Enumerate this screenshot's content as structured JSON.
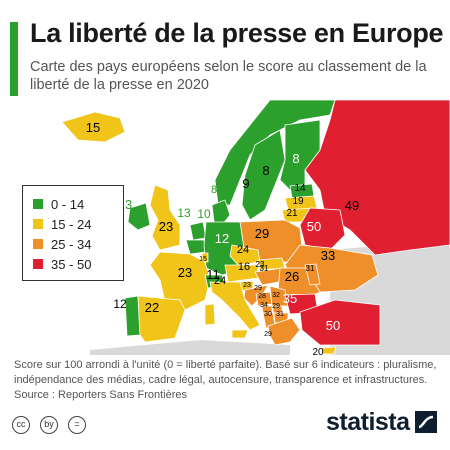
{
  "title": "La liberté de la presse en Europe",
  "subtitle": "Carte des pays européens selon le score au classement de la liberté de la presse en 2020",
  "legend": [
    {
      "label": "0 - 14",
      "color": "#2ca02c"
    },
    {
      "label": "15 - 24",
      "color": "#f0c419"
    },
    {
      "label": "25 - 34",
      "color": "#ee8f2a"
    },
    {
      "label": "35 - 50",
      "color": "#e02030"
    }
  ],
  "regions": {
    "islande": {
      "score": "15",
      "category": 1
    },
    "irlande": {
      "score": "13",
      "category": 0
    },
    "royaume_uni": {
      "score": "23",
      "category": 1
    },
    "norvege": {
      "score": "8",
      "category": 0
    },
    "suede": {
      "score": "9",
      "category": 0
    },
    "finlande": {
      "score": "8",
      "category": 0
    },
    "danemark": {
      "score": "8",
      "category": 0
    },
    "pays_bas": {
      "score": "13",
      "category": 0
    },
    "belgique": {
      "score": "10",
      "category": 0
    },
    "luxembourg": {
      "score": "15",
      "category": 1
    },
    "allemagne": {
      "score": "12",
      "category": 0
    },
    "france": {
      "score": "23",
      "category": 1
    },
    "suisse": {
      "score": "11",
      "category": 0
    },
    "portugal": {
      "score": "12",
      "category": 0
    },
    "espagne": {
      "score": "22",
      "category": 1
    },
    "italie": {
      "score": "24",
      "category": 1
    },
    "autriche": {
      "score": "16",
      "category": 1
    },
    "tchequie": {
      "score": "24",
      "category": 1
    },
    "pologne": {
      "score": "29",
      "category": 2
    },
    "estonie": {
      "score": "14",
      "category": 0
    },
    "lettonie": {
      "score": "19",
      "category": 1
    },
    "lituanie": {
      "score": "21",
      "category": 1
    },
    "bielorussie": {
      "score": "50",
      "category": 3
    },
    "ukraine": {
      "score": "33",
      "category": 2
    },
    "russie": {
      "score": "49",
      "category": 3
    },
    "slovaquie": {
      "score": "23",
      "category": 1
    },
    "hongrie": {
      "score": "31",
      "category": 2
    },
    "roumanie": {
      "score": "26",
      "category": 2
    },
    "moldavie": {
      "score": "31",
      "category": 2
    },
    "slovenie": {
      "score": "23",
      "category": 1
    },
    "croatie": {
      "score": "29",
      "category": 2
    },
    "bosnie": {
      "score": "28",
      "category": 2
    },
    "serbie": {
      "score": "32",
      "category": 2
    },
    "montenegro": {
      "score": "34",
      "category": 2
    },
    "albanie": {
      "score": "30",
      "category": 2
    },
    "macedoine": {
      "score": "31",
      "category": 2
    },
    "bulgarie": {
      "score": "35",
      "category": 3
    },
    "grece": {
      "score": "29",
      "category": 2
    },
    "kosovo": {
      "score": "29",
      "category": 2
    },
    "turquie": {
      "score": "50",
      "category": 3
    },
    "chypre": {
      "score": "20",
      "category": 1
    }
  },
  "footnote": "Score sur 100 arrondi à l'unité (0 = liberté parfaite). Basé sur 6 indicateurs : pluralisme, indépendance des médias, cadre légal, autocensure, transparence et infrastructures.",
  "source": "Source : Reporters Sans Frontières",
  "license_icons": [
    "cc",
    "by",
    "="
  ],
  "brand": "statista"
}
